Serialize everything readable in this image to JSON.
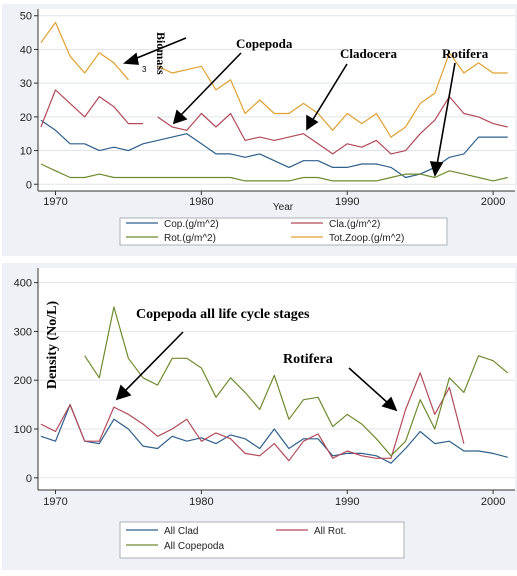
{
  "chart_data": [
    {
      "type": "line",
      "title": "",
      "xlabel": "Year",
      "ylabel": "",
      "xlim": [
        1968.8,
        2001.5
      ],
      "ylim": [
        -2,
        52
      ],
      "xticks": [
        1970,
        1980,
        1990,
        2000
      ],
      "xtick_labels": [
        "1970",
        "1980",
        "1990",
        "2000"
      ],
      "yticks": [
        0,
        10,
        20,
        30,
        40,
        50
      ],
      "ytick_labels": [
        "0",
        "10",
        "20",
        "30",
        "40",
        "50"
      ],
      "grid": true,
      "legend_position": "bottom",
      "series": [
        {
          "name": "Cop.(g/m^2)",
          "color": "#2e5f8a",
          "x": [
            1969,
            1970,
            1971,
            1972,
            1973,
            1974,
            1975,
            1976,
            1977,
            1978,
            1979,
            1980,
            1981,
            1982,
            1983,
            1984,
            1985,
            1986,
            1987,
            1988,
            1989,
            1990,
            1991,
            1992,
            1993,
            1994,
            1995,
            1996,
            1997,
            1998,
            1999,
            2000,
            2001
          ],
          "y": [
            19,
            16,
            12,
            12,
            10,
            11,
            10,
            12,
            13,
            14,
            15,
            12,
            9,
            9,
            8,
            9,
            7,
            5,
            7,
            7,
            5,
            5,
            6,
            6,
            5,
            2,
            3,
            5,
            8,
            9,
            14,
            14,
            14
          ]
        },
        {
          "name": "Cla.(g/m^2)",
          "color": "#b24a5a",
          "x": [
            1969,
            1970,
            1971,
            1972,
            1973,
            1974,
            1975,
            1976,
            null,
            1977,
            1978,
            1979,
            1980,
            1981,
            1982,
            1983,
            1984,
            1985,
            1986,
            1987,
            1988,
            1989,
            1990,
            1991,
            1992,
            1993,
            1994,
            1995,
            1996,
            1997,
            1998,
            1999,
            2000,
            2001
          ],
          "y": [
            17,
            28,
            24,
            20,
            26,
            23,
            18,
            18,
            null,
            20,
            17,
            16,
            21,
            17,
            21,
            13,
            14,
            13,
            14,
            15,
            12,
            9,
            12,
            11,
            13,
            9,
            10,
            15,
            19,
            26,
            21,
            20,
            18,
            17
          ]
        },
        {
          "name": "Rot.(g/m^2)",
          "color": "#6f8a2e",
          "x": [
            1969,
            1970,
            1971,
            1972,
            1973,
            1974,
            1975,
            1976,
            1977,
            1978,
            1979,
            1980,
            1981,
            1982,
            1983,
            1984,
            1985,
            1986,
            1987,
            1988,
            1989,
            1990,
            1991,
            1992,
            1993,
            1994,
            1995,
            1996,
            1997,
            1998,
            1999,
            2000,
            2001
          ],
          "y": [
            6,
            4,
            2,
            2,
            3,
            2,
            2,
            2,
            2,
            2,
            2,
            2,
            2,
            2,
            1,
            1,
            1,
            1,
            2,
            2,
            1,
            1,
            1,
            1,
            2,
            3,
            3,
            2,
            4,
            3,
            2,
            1,
            2
          ]
        },
        {
          "name": "Tot.Zoop.(g/m^2)",
          "color": "#e0a030",
          "x": [
            1969,
            1970,
            1971,
            1972,
            1973,
            1974,
            1975,
            null,
            1977,
            1978,
            1979,
            1980,
            1981,
            1982,
            1983,
            1984,
            1985,
            1986,
            1987,
            1988,
            1989,
            1990,
            1991,
            1992,
            1993,
            1994,
            1995,
            1996,
            1997,
            1998,
            1999,
            2000,
            2001
          ],
          "y": [
            42,
            48,
            38,
            33,
            39,
            36,
            31,
            null,
            35,
            33,
            34,
            35,
            28,
            31,
            21,
            25,
            21,
            21,
            24,
            21,
            16,
            21,
            18,
            21,
            14,
            17,
            24,
            27,
            39,
            33,
            36,
            33,
            33
          ]
        }
      ],
      "annotations": [
        {
          "text": "Biomass",
          "sub": "3",
          "x": 1974.3,
          "y": 49
        },
        {
          "text": "Copepoda",
          "x": 1982.3,
          "y": 49
        },
        {
          "text": "Cladocera",
          "x": 1989.6,
          "y": 45
        },
        {
          "text": "Rotifera",
          "x": 1996.2,
          "y": 45
        }
      ]
    },
    {
      "type": "line",
      "title": "",
      "xlabel": "",
      "ylabel": "Density (No/L)",
      "xlim": [
        1968.8,
        2001.5
      ],
      "ylim": [
        -25,
        430
      ],
      "xticks": [
        1970,
        1980,
        1990,
        2000
      ],
      "xtick_labels": [
        "1970",
        "1980",
        "1990",
        "2000"
      ],
      "yticks": [
        0,
        100,
        200,
        300,
        400
      ],
      "ytick_labels": [
        "0",
        "100",
        "200",
        "300",
        "400"
      ],
      "grid": true,
      "legend_position": "bottom",
      "series": [
        {
          "name": "All Clad",
          "color": "#2e5f8a",
          "x": [
            1969,
            1970,
            1971,
            1972,
            1973,
            1974,
            1975,
            1976,
            1977,
            1978,
            1979,
            1980,
            1981,
            1982,
            1983,
            1984,
            1985,
            1986,
            1987,
            1988,
            1989,
            1990,
            1991,
            1992,
            1993,
            1994,
            1995,
            1996,
            1997,
            1998,
            1999,
            2000,
            2001
          ],
          "y": [
            85,
            75,
            150,
            75,
            70,
            120,
            100,
            65,
            60,
            85,
            75,
            82,
            70,
            88,
            80,
            60,
            100,
            60,
            80,
            80,
            45,
            50,
            50,
            45,
            30,
            60,
            95,
            70,
            75,
            55,
            55,
            50,
            42
          ]
        },
        {
          "name": "All Rot.",
          "color": "#b24a5a",
          "x": [
            1969,
            1970,
            1971,
            1972,
            1973,
            1974,
            1975,
            1976,
            1977,
            1978,
            1979,
            1980,
            1981,
            1982,
            1983,
            1984,
            1985,
            1986,
            1987,
            1988,
            1989,
            1990,
            1991,
            1992,
            1993,
            1994,
            1995,
            1996,
            1997,
            1998
          ],
          "y": [
            110,
            95,
            150,
            75,
            75,
            145,
            130,
            110,
            85,
            100,
            120,
            75,
            92,
            80,
            50,
            45,
            70,
            35,
            75,
            90,
            40,
            55,
            45,
            40,
            40,
            140,
            215,
            130,
            185,
            70
          ]
        },
        {
          "name": "All Copepoda",
          "color": "#6f8a2e",
          "x": [
            1969,
            1970,
            1971,
            1972,
            1973,
            1974,
            1975,
            1976,
            1977,
            1978,
            1979,
            1980,
            1981,
            1982,
            1983,
            1984,
            1985,
            1986,
            1987,
            1988,
            1989,
            1990,
            1991,
            1992,
            1993,
            1994,
            1995,
            1996,
            1997,
            1998,
            1999,
            2000,
            2001
          ],
          "y": [
            null,
            null,
            null,
            250,
            205,
            350,
            245,
            205,
            190,
            245,
            245,
            225,
            165,
            205,
            175,
            140,
            210,
            120,
            160,
            165,
            105,
            130,
            110,
            80,
            45,
            75,
            160,
            100,
            205,
            175,
            250,
            240,
            215
          ]
        }
      ],
      "annotations": [
        {
          "text": "Copepoda all life cycle stages",
          "x": 1979,
          "y": 372
        },
        {
          "text": "Rotifera",
          "x": 1992,
          "y": 258
        }
      ]
    }
  ]
}
